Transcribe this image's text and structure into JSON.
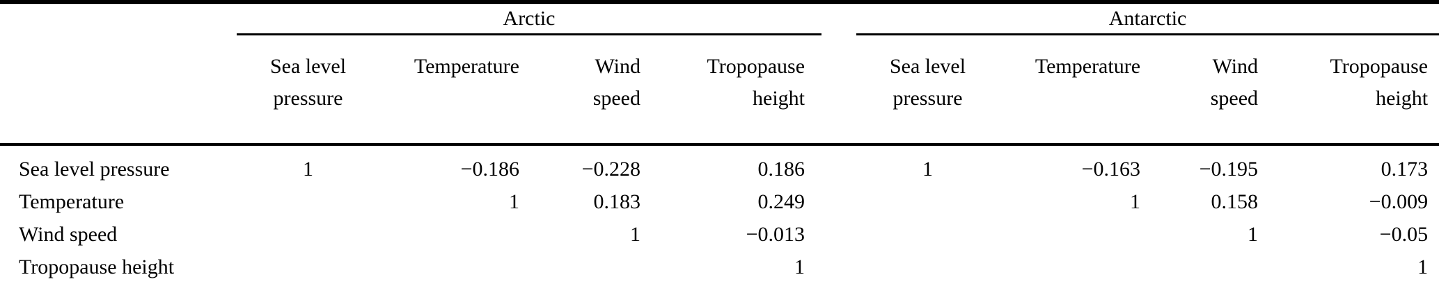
{
  "table": {
    "groups": [
      {
        "label": "Arctic"
      },
      {
        "label": "Antarctic"
      }
    ],
    "columns": {
      "sea_level": [
        "Sea level",
        "pressure"
      ],
      "temperature": "Temperature",
      "wind": [
        "Wind",
        "speed"
      ],
      "tropopause": [
        "Tropopause",
        "height"
      ]
    },
    "rows": [
      {
        "label": "Sea level pressure",
        "arctic": [
          "1",
          "−0.186",
          "−0.228",
          "0.186"
        ],
        "antarctic": [
          "1",
          "−0.163",
          "−0.195",
          "0.173"
        ]
      },
      {
        "label": "Temperature",
        "arctic": [
          "",
          "1",
          "0.183",
          "0.249"
        ],
        "antarctic": [
          "",
          "1",
          "0.158",
          "−0.009"
        ]
      },
      {
        "label": "Wind speed",
        "arctic": [
          "",
          "",
          "1",
          "−0.013"
        ],
        "antarctic": [
          "",
          "",
          "1",
          "−0.05"
        ]
      },
      {
        "label": "Tropopause height",
        "arctic": [
          "",
          "",
          "",
          "1"
        ],
        "antarctic": [
          "",
          "",
          "",
          "1"
        ]
      }
    ],
    "colors": {
      "text": "#000000",
      "background": "#ffffff",
      "rule": "#000000"
    }
  }
}
